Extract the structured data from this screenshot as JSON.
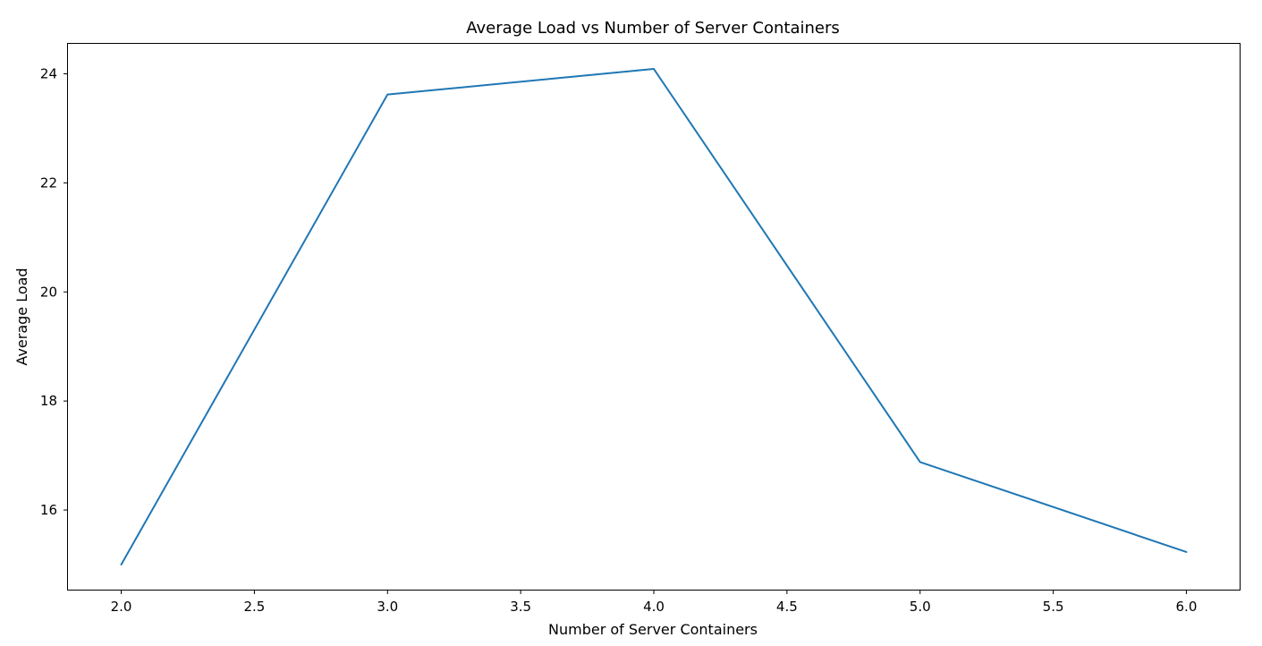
{
  "chart_data": {
    "type": "line",
    "title": "Average Load vs Number of Server Containers",
    "xlabel": "Number of Server Containers",
    "ylabel": "Average Load",
    "x": [
      2.0,
      3.0,
      4.0,
      5.0,
      6.0
    ],
    "series": [
      {
        "values": [
          15.0,
          23.62,
          24.09,
          16.88,
          15.23
        ],
        "color": "#1f77b4"
      }
    ],
    "xlim": [
      1.8,
      6.2
    ],
    "ylim": [
      14.54,
      24.55
    ],
    "xticks": [
      2.0,
      2.5,
      3.0,
      3.5,
      4.0,
      4.5,
      5.0,
      5.5,
      6.0
    ],
    "xtick_labels": [
      "2.0",
      "2.5",
      "3.0",
      "3.5",
      "4.0",
      "4.5",
      "5.0",
      "5.5",
      "6.0"
    ],
    "yticks": [
      16,
      18,
      20,
      22,
      24
    ],
    "ytick_labels": [
      "16",
      "18",
      "20",
      "22",
      "24"
    ],
    "grid": false,
    "legend": "none"
  }
}
